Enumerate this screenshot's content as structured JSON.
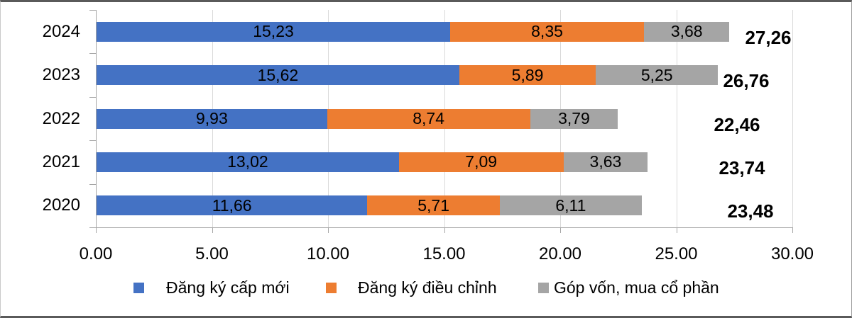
{
  "chart_data": {
    "type": "bar",
    "orientation": "horizontal-stacked",
    "categories": [
      "2024",
      "2023",
      "2022",
      "2021",
      "2020"
    ],
    "series": [
      {
        "name": "Đăng ký cấp mới",
        "color": "#4472C4",
        "values": [
          15.23,
          15.62,
          9.93,
          13.02,
          11.66
        ],
        "labels": [
          "15,23",
          "15,62",
          "9,93",
          "13,02",
          "11,66"
        ]
      },
      {
        "name": "Đăng ký điều chỉnh",
        "color": "#ED7D31",
        "values": [
          8.35,
          5.89,
          8.74,
          7.09,
          5.71
        ],
        "labels": [
          "8,35",
          "5,89",
          "8,74",
          "7,09",
          "5,71"
        ]
      },
      {
        "name": "Góp vốn, mua cổ phần",
        "color": "#A5A5A5",
        "values": [
          3.68,
          5.25,
          3.79,
          3.63,
          6.11
        ],
        "labels": [
          "3,68",
          "5,25",
          "3,79",
          "3,63",
          "6,11"
        ]
      }
    ],
    "totals": [
      27.26,
      26.76,
      22.46,
      23.74,
      23.48
    ],
    "total_labels": [
      "27,26",
      "26,76",
      "22,46",
      "23,74",
      "23,48"
    ],
    "x_axis": {
      "min": 0,
      "max": 30,
      "step": 5,
      "tick_labels": [
        "0.00",
        "5.00",
        "10.00",
        "15.00",
        "20.00",
        "25.00",
        "30.00"
      ]
    },
    "legend_position": "bottom",
    "grid": true,
    "gridline_color": "#D9D9D9",
    "axis_color": "#A6A6A6",
    "label_color": "#000000"
  }
}
